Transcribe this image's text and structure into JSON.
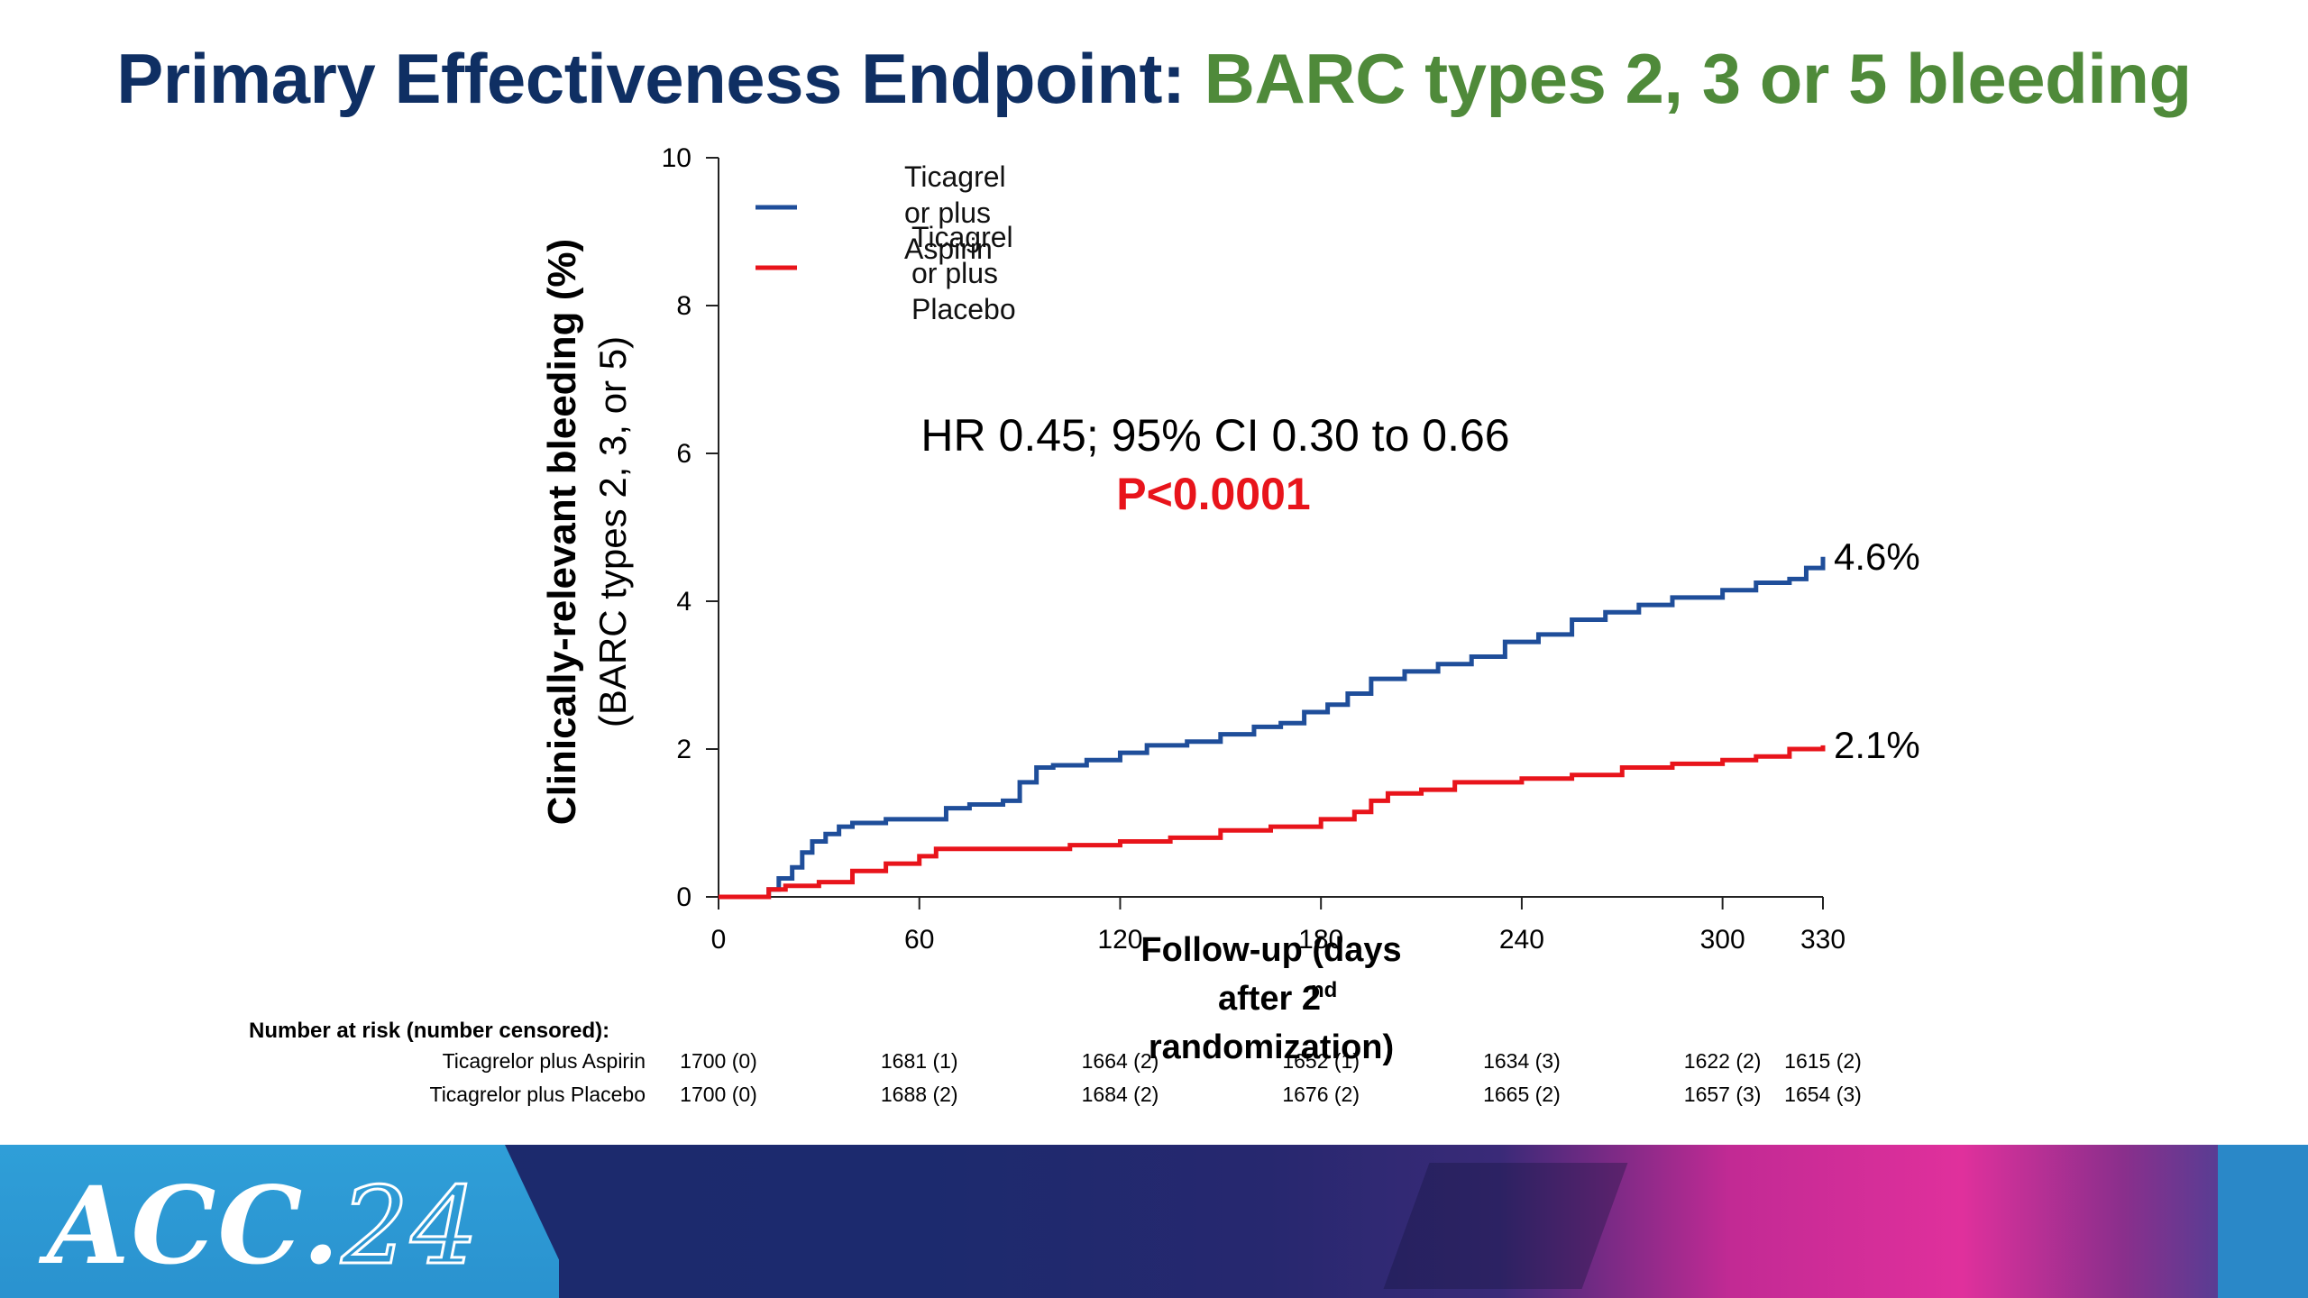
{
  "title": {
    "part1": "Primary Effectiveness Endpoint: ",
    "part2": "BARC types 2, 3 or 5 bleeding"
  },
  "colors": {
    "title_navy": "#0f2f63",
    "title_green": "#4f8a3a",
    "series_aspirin": "#1f4e9a",
    "series_placebo": "#e8141b",
    "pvalue": "#e8141b"
  },
  "chart_data": {
    "type": "line",
    "ylabel": "Clinically-relevant bleeding (%)",
    "ylabel_sub": "(BARC types 2, 3, or 5)",
    "xlabel_lines": [
      "Follow-up (days",
      "after 2",
      "randomization)"
    ],
    "xlabel_superscript": "nd",
    "xlim": [
      0,
      330
    ],
    "ylim": [
      0,
      10
    ],
    "xticks": [
      0,
      60,
      120,
      180,
      240,
      300,
      330
    ],
    "yticks": [
      0,
      2,
      4,
      6,
      8,
      10
    ],
    "grid": false,
    "legend_position": "top-left",
    "annotation_hr": "HR 0.45; 95% CI 0.30 to 0.66",
    "annotation_p": "P<0.0001",
    "series": [
      {
        "name": "Ticagrel or plus Aspirin",
        "legend_lines": [
          "Ticagrel",
          "or plus",
          "Aspirin"
        ],
        "color": "#1f4e9a",
        "end_label": "4.6%",
        "x": [
          0,
          12,
          15,
          18,
          22,
          25,
          28,
          32,
          36,
          40,
          45,
          50,
          60,
          68,
          75,
          85,
          90,
          95,
          100,
          110,
          120,
          128,
          140,
          150,
          160,
          168,
          175,
          182,
          188,
          195,
          205,
          215,
          225,
          235,
          245,
          255,
          265,
          275,
          285,
          300,
          310,
          315,
          320,
          325,
          330
        ],
        "y": [
          0,
          0,
          0.1,
          0.25,
          0.4,
          0.6,
          0.75,
          0.85,
          0.95,
          1.0,
          1.0,
          1.05,
          1.05,
          1.2,
          1.25,
          1.3,
          1.55,
          1.75,
          1.78,
          1.85,
          1.95,
          2.05,
          2.1,
          2.2,
          2.3,
          2.35,
          2.5,
          2.6,
          2.75,
          2.95,
          3.05,
          3.15,
          3.25,
          3.45,
          3.55,
          3.75,
          3.85,
          3.95,
          4.05,
          4.15,
          4.25,
          4.25,
          4.3,
          4.45,
          4.6
        ]
      },
      {
        "name": "Ticagrel or plus Placebo",
        "legend_lines": [
          "Ticagrel",
          "or plus",
          "Placebo"
        ],
        "color": "#e8141b",
        "end_label": "2.1%",
        "x": [
          0,
          12,
          15,
          20,
          30,
          40,
          50,
          60,
          65,
          70,
          90,
          105,
          120,
          135,
          150,
          165,
          180,
          190,
          195,
          200,
          210,
          220,
          240,
          255,
          270,
          285,
          300,
          310,
          320,
          330
        ],
        "y": [
          0,
          0,
          0.1,
          0.15,
          0.2,
          0.35,
          0.45,
          0.55,
          0.65,
          0.65,
          0.65,
          0.7,
          0.75,
          0.8,
          0.9,
          0.95,
          1.05,
          1.15,
          1.3,
          1.4,
          1.45,
          1.55,
          1.6,
          1.65,
          1.75,
          1.8,
          1.85,
          1.9,
          2.0,
          2.05
        ]
      }
    ]
  },
  "risk_table": {
    "header": "Number at risk (number censored):",
    "rows": [
      {
        "label": "Ticagrelor plus Aspirin",
        "cells": [
          {
            "x": 0,
            "text": "1700 (0)"
          },
          {
            "x": 60,
            "text": "1681 (1)"
          },
          {
            "x": 120,
            "text": "1664 (2)"
          },
          {
            "x": 180,
            "text": "1652 (1)"
          },
          {
            "x": 240,
            "text": "1634 (3)"
          },
          {
            "x": 300,
            "text": "1622 (2)"
          },
          {
            "x": 330,
            "text": "1615 (2)"
          }
        ]
      },
      {
        "label": "Ticagrelor plus Placebo",
        "cells": [
          {
            "x": 0,
            "text": "1700 (0)"
          },
          {
            "x": 60,
            "text": "1688 (2)"
          },
          {
            "x": 120,
            "text": "1684 (2)"
          },
          {
            "x": 180,
            "text": "1676 (2)"
          },
          {
            "x": 240,
            "text": "1665 (2)"
          },
          {
            "x": 300,
            "text": "1657 (3)"
          },
          {
            "x": 330,
            "text": "1654 (3)"
          }
        ]
      }
    ]
  },
  "footer": {
    "logo_text": "ACC.",
    "logo_num": "24"
  }
}
